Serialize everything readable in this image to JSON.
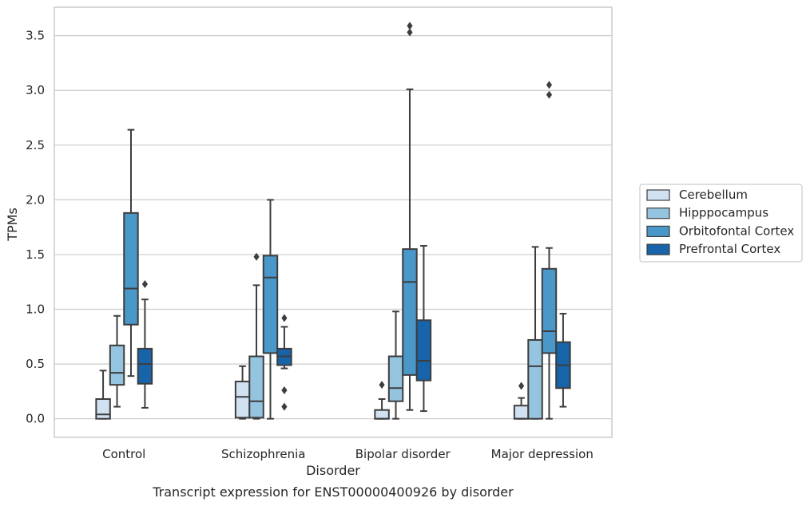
{
  "chart_data": {
    "type": "box",
    "caption": "Transcript expression for ENST00000400926 by disorder",
    "xlabel": "Disorder",
    "ylabel": "TPMs",
    "ylim": [
      -0.17,
      3.76
    ],
    "yticks": [
      "0.0",
      "0.5",
      "1.0",
      "1.5",
      "2.0",
      "2.5",
      "3.0",
      "3.5"
    ],
    "ytick_values": [
      0,
      0.5,
      1.0,
      1.5,
      2.0,
      2.5,
      3.0,
      3.5
    ],
    "grid": true,
    "legend_position": "right",
    "categories": [
      "Control",
      "Schizophrenia",
      "Bipolar disorder",
      "Major depression"
    ],
    "series": [
      {
        "name": "Cerebellum",
        "color": "#d0e1f2",
        "boxes": [
          {
            "whislo": 0.0,
            "q1": 0.0,
            "med": 0.04,
            "q3": 0.18,
            "whishi": 0.44,
            "fliers": []
          },
          {
            "whislo": 0.0,
            "q1": 0.01,
            "med": 0.2,
            "q3": 0.34,
            "whishi": 0.48,
            "fliers": []
          },
          {
            "whislo": 0.0,
            "q1": 0.0,
            "med": 0.0,
            "q3": 0.08,
            "whishi": 0.18,
            "fliers": [
              0.31
            ]
          },
          {
            "whislo": 0.0,
            "q1": 0.0,
            "med": 0.0,
            "q3": 0.12,
            "whishi": 0.19,
            "fliers": [
              0.3
            ]
          }
        ]
      },
      {
        "name": "Hipppocampus",
        "color": "#94c4df",
        "boxes": [
          {
            "whislo": 0.11,
            "q1": 0.31,
            "med": 0.42,
            "q3": 0.67,
            "whishi": 0.94,
            "fliers": []
          },
          {
            "whislo": 0.0,
            "q1": 0.01,
            "med": 0.16,
            "q3": 0.57,
            "whishi": 1.22,
            "fliers": [
              1.48
            ]
          },
          {
            "whislo": 0.0,
            "q1": 0.16,
            "med": 0.28,
            "q3": 0.57,
            "whishi": 0.98,
            "fliers": []
          },
          {
            "whislo": 0.0,
            "q1": 0.0,
            "med": 0.48,
            "q3": 0.72,
            "whishi": 1.57,
            "fliers": []
          }
        ]
      },
      {
        "name": "Orbitofontal Cortex",
        "color": "#4a98c9",
        "boxes": [
          {
            "whislo": 0.39,
            "q1": 0.86,
            "med": 1.19,
            "q3": 1.88,
            "whishi": 2.64,
            "fliers": []
          },
          {
            "whislo": 0.0,
            "q1": 0.6,
            "med": 1.29,
            "q3": 1.49,
            "whishi": 2.0,
            "fliers": []
          },
          {
            "whislo": 0.08,
            "q1": 0.4,
            "med": 1.25,
            "q3": 1.55,
            "whishi": 3.01,
            "fliers": [
              3.53,
              3.59
            ]
          },
          {
            "whislo": 0.0,
            "q1": 0.6,
            "med": 0.8,
            "q3": 1.37,
            "whishi": 1.56,
            "fliers": [
              2.96,
              3.05
            ]
          }
        ]
      },
      {
        "name": "Prefrontal Cortex",
        "color": "#1764ab",
        "boxes": [
          {
            "whislo": 0.1,
            "q1": 0.32,
            "med": 0.5,
            "q3": 0.64,
            "whishi": 1.09,
            "fliers": [
              1.23
            ]
          },
          {
            "whislo": 0.46,
            "q1": 0.49,
            "med": 0.57,
            "q3": 0.64,
            "whishi": 0.84,
            "fliers": [
              0.11,
              0.26,
              0.92
            ]
          },
          {
            "whislo": 0.07,
            "q1": 0.35,
            "med": 0.53,
            "q3": 0.9,
            "whishi": 1.58,
            "fliers": []
          },
          {
            "whislo": 0.11,
            "q1": 0.28,
            "med": 0.49,
            "q3": 0.7,
            "whishi": 0.96,
            "fliers": []
          }
        ]
      }
    ]
  }
}
